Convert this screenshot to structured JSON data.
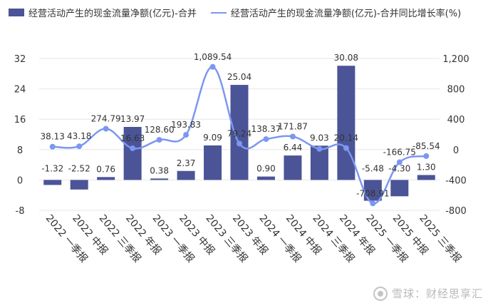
{
  "legend": {
    "bar_label": "经营活动产生的现金流量净额(亿元)-合并",
    "line_label": "经营活动产生的现金流量净额(亿元)-合并同比增长率(%)"
  },
  "colors": {
    "bar": "#4b5497",
    "line": "#7b97f0",
    "grid": "#e6e6e6",
    "text": "#333333"
  },
  "watermark": "雪球：财经思享汇",
  "chart_data": {
    "type": "bar+line",
    "categories": [
      "2022 一季报",
      "2022 中报",
      "2022 三季报",
      "2022 年报",
      "2023 一季报",
      "2023 中报",
      "2023 三季报",
      "2023 年报",
      "2024 一季报",
      "2024 中报",
      "2024 三季报",
      "2024 年报",
      "2025 一季报",
      "2025 中报",
      "2025 三季报"
    ],
    "series": [
      {
        "name": "经营活动产生的现金流量净额(亿元)-合并",
        "type": "bar",
        "axis": "left",
        "values": [
          -1.32,
          -2.52,
          0.76,
          13.97,
          0.38,
          2.37,
          9.09,
          25.04,
          0.9,
          6.44,
          9.03,
          30.08,
          -5.48,
          -4.3,
          1.3
        ],
        "labels": [
          "-1.32",
          "-2.52",
          "0.76",
          "13.97",
          "0.38",
          "2.37",
          "9.09",
          "25.04",
          "0.90",
          "6.44",
          "9.03",
          "30.08",
          "-5.48",
          "-4.30",
          "1.30"
        ]
      },
      {
        "name": "经营活动产生的现金流量净额(亿元)-合并同比增长率(%)",
        "type": "line",
        "axis": "right",
        "values": [
          38.13,
          43.18,
          274.79,
          16.63,
          128.6,
          193.83,
          1089.54,
          79.24,
          138.37,
          171.87,
          9.03,
          20.14,
          -708.91,
          -166.75,
          -85.54
        ],
        "labels": [
          "38.13",
          "43.18",
          "274.79",
          "16.63",
          "128.60",
          "193.83",
          "1,089.54",
          "79.24",
          "138.37",
          "171.87",
          "",
          "20.14",
          "-708.91",
          "-166.75",
          "-85.54"
        ]
      }
    ],
    "y_left": {
      "min": -8,
      "max": 32,
      "ticks": [
        -8,
        0,
        8,
        16,
        24,
        32
      ],
      "tick_labels": [
        "-8",
        "0",
        "8",
        "16",
        "24",
        "32"
      ]
    },
    "y_right": {
      "min": -800,
      "max": 1200,
      "ticks": [
        -800,
        -400,
        0,
        400,
        800,
        1200
      ],
      "tick_labels": [
        "-800",
        "-400",
        "0",
        "400",
        "800",
        "1,200"
      ]
    },
    "grid": true,
    "legend_position": "top-left"
  }
}
